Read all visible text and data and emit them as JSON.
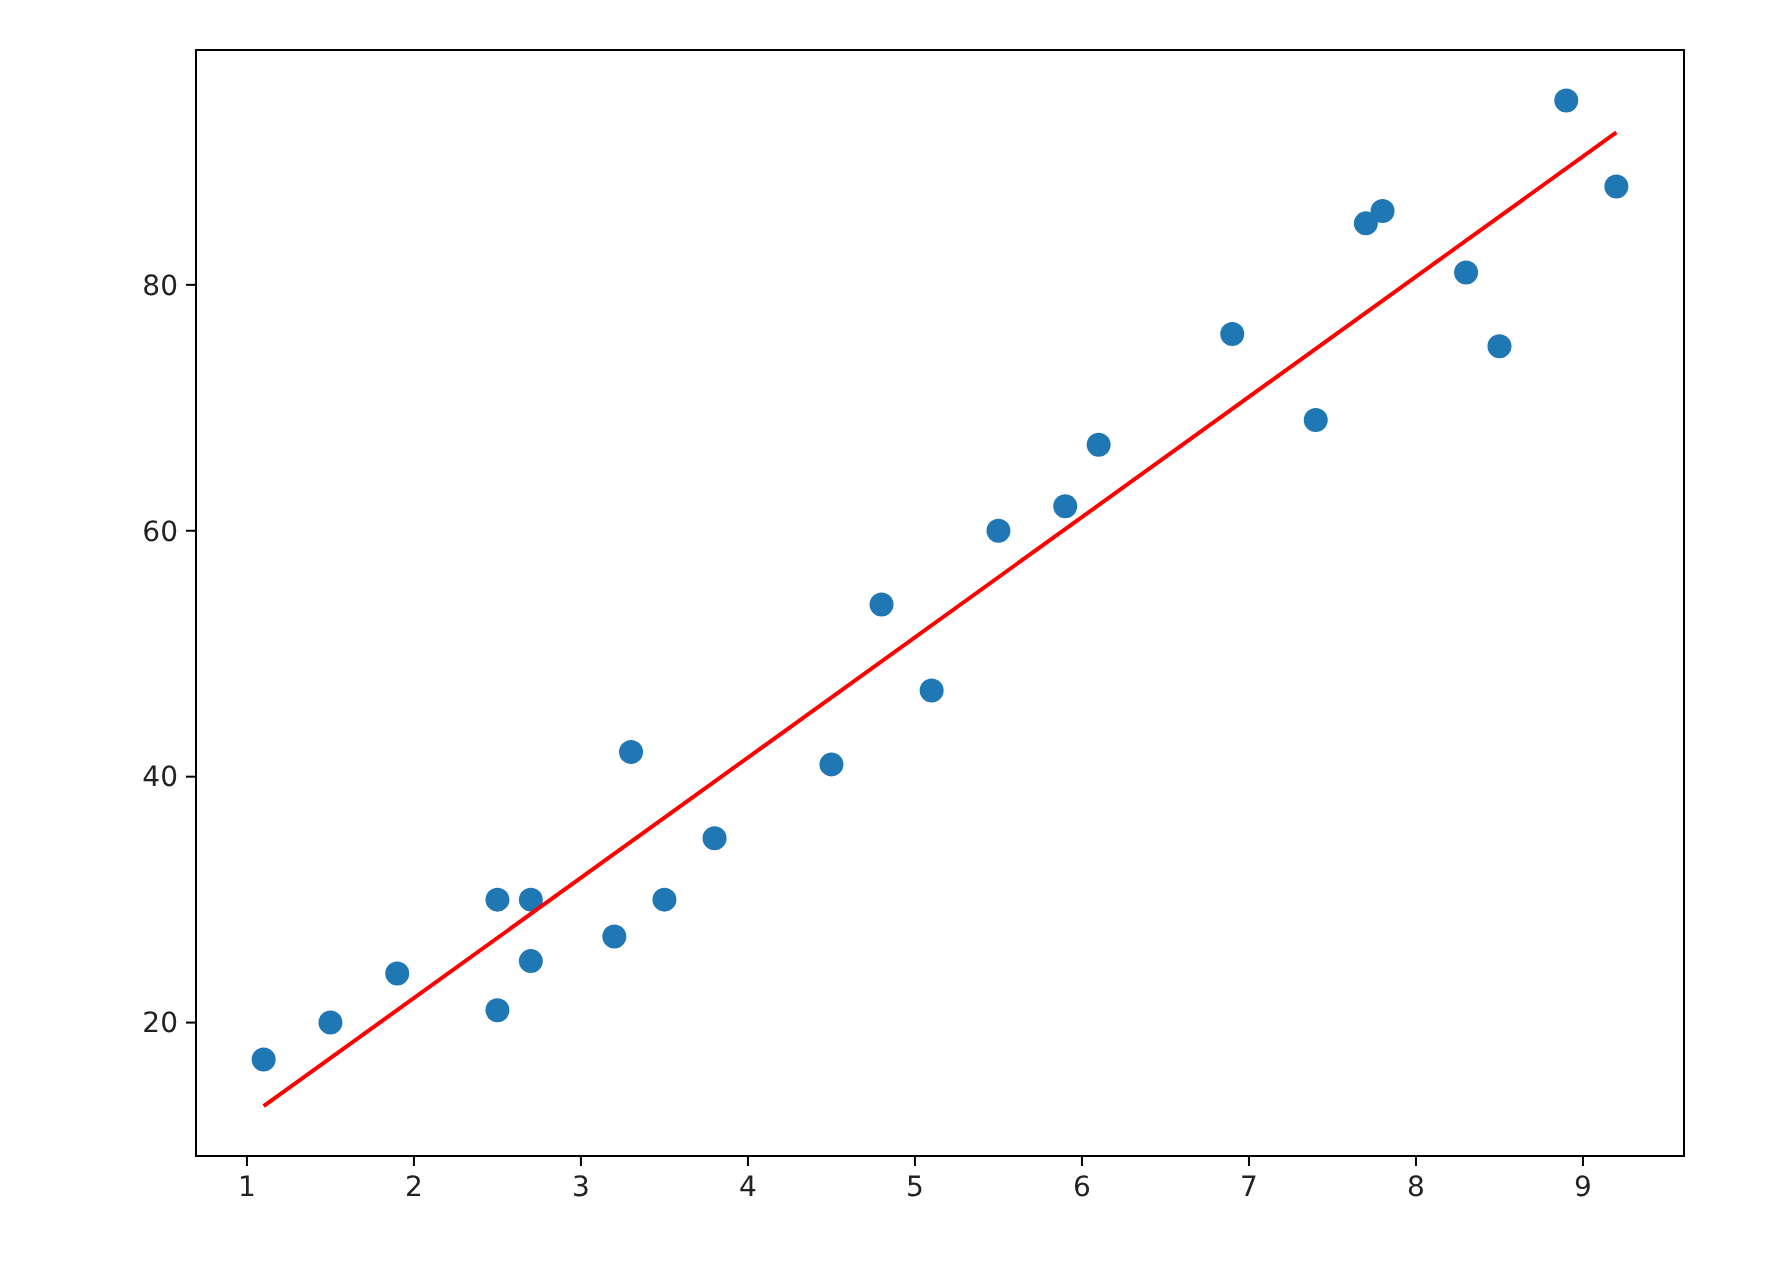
{
  "chart_data": {
    "type": "scatter",
    "x": [
      2.5,
      5.1,
      3.2,
      8.5,
      3.5,
      1.5,
      9.2,
      5.5,
      8.3,
      2.7,
      7.7,
      5.9,
      4.5,
      3.3,
      1.1,
      8.9,
      2.5,
      1.9,
      6.1,
      7.4,
      2.7,
      4.8,
      3.8,
      6.9,
      7.8
    ],
    "series": [
      {
        "color": "#1f77b4",
        "marker": "circle",
        "values": [
          21,
          47,
          27,
          75,
          30,
          20,
          88,
          60,
          81,
          25,
          85,
          62,
          41,
          42,
          17,
          95,
          30,
          24,
          67,
          69,
          30,
          54,
          35,
          76,
          86
        ]
      },
      {
        "type": "line",
        "color": "#ff0000",
        "x": [
          1.1,
          9.2
        ],
        "values": [
          13.2,
          92.4
        ]
      }
    ],
    "xlim": [
      0.695,
      9.605
    ],
    "ylim": [
      9.15,
      99.1
    ],
    "xticks": [
      1,
      2,
      3,
      4,
      5,
      6,
      7,
      8,
      9
    ],
    "yticks": [
      20,
      40,
      60,
      80
    ],
    "grid": false
  }
}
